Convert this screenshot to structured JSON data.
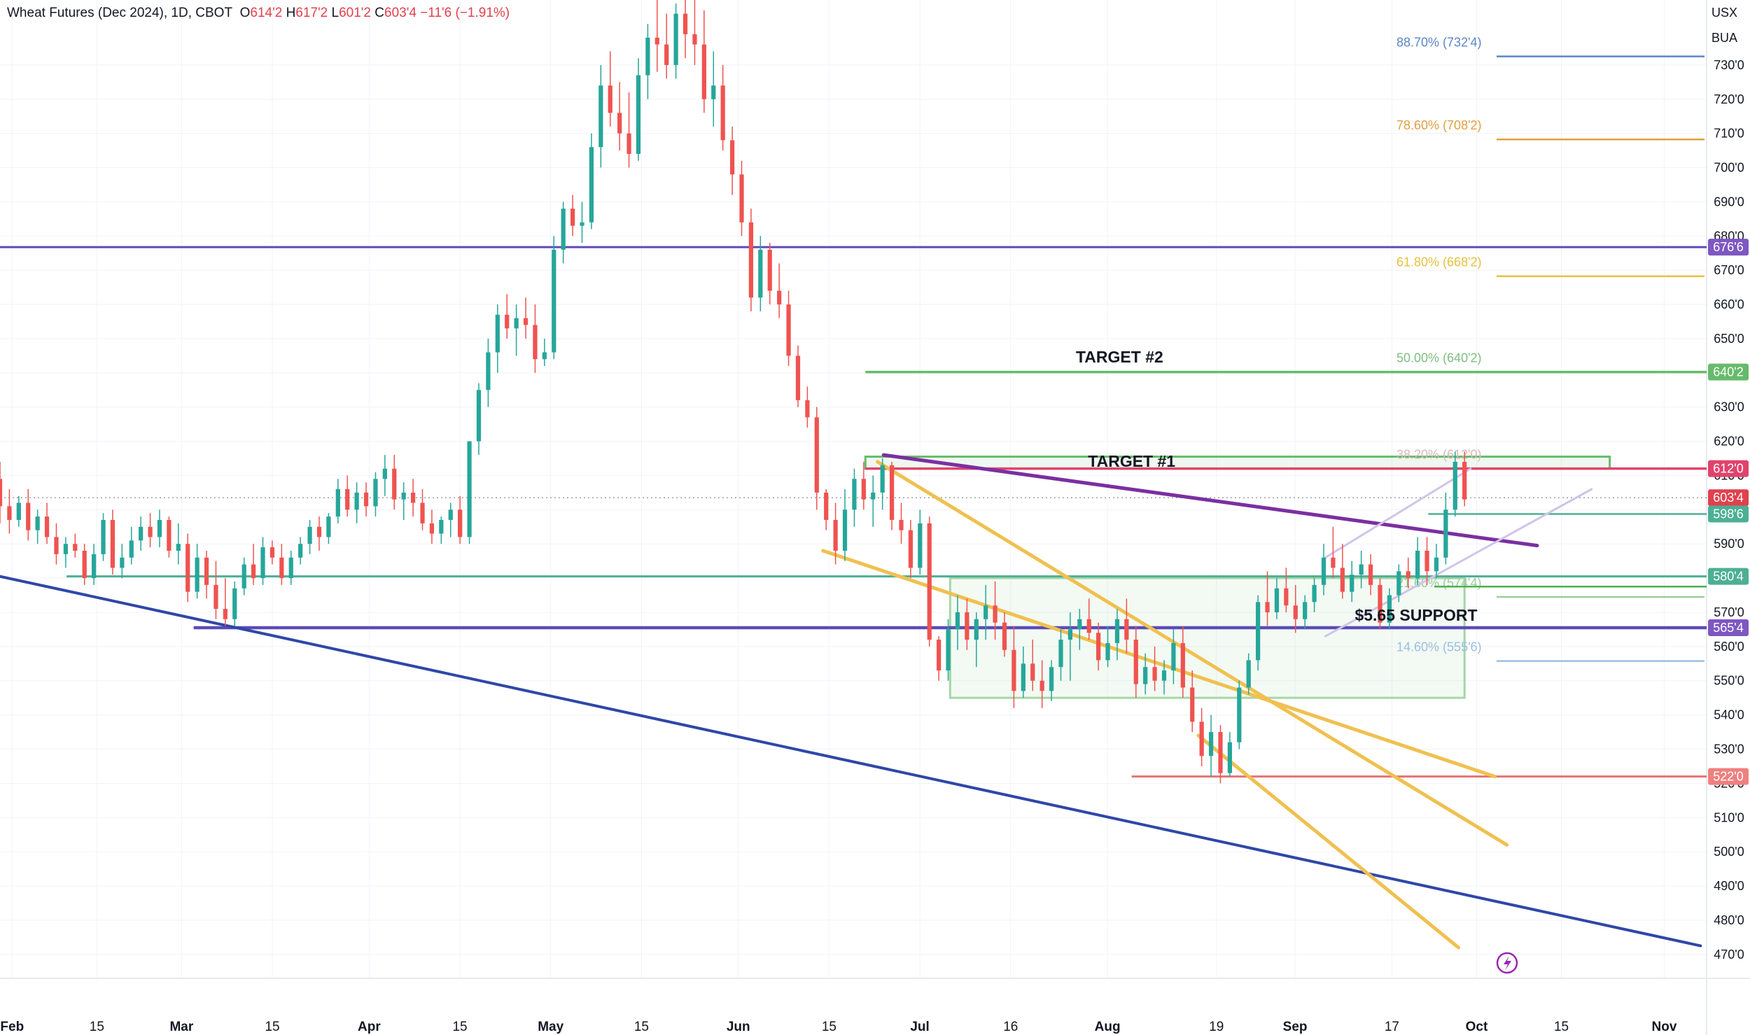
{
  "header": {
    "symbol": "Wheat Futures (Dec 2024), 1D, CBOT",
    "o_key": "O",
    "o_val": "614'2",
    "h_key": "H",
    "h_val": "617'2",
    "l_key": "L",
    "l_val": "601'2",
    "c_key": "C",
    "c_val": "603'4",
    "change": "−11'6 (−1.91%)"
  },
  "units": {
    "currency": "USX",
    "unit": "BUA"
  },
  "chart_data": {
    "type": "candlestick",
    "x_ticks": [
      "Feb",
      "15",
      "Mar",
      "15",
      "Apr",
      "15",
      "May",
      "15",
      "Jun",
      "15",
      "Jul",
      "16",
      "Aug",
      "19",
      "Sep",
      "17",
      "Oct",
      "15",
      "Nov"
    ],
    "x_tick_days": [
      0,
      14,
      28,
      43,
      59,
      74,
      89,
      104,
      120,
      135,
      150,
      165,
      181,
      199,
      212,
      228,
      242,
      256,
      273
    ],
    "x_range_days": [
      -2,
      280
    ],
    "y_ticks": [
      "470'0",
      "480'0",
      "490'0",
      "500'0",
      "510'0",
      "520'0",
      "530'0",
      "540'0",
      "550'0",
      "560'0",
      "570'0",
      "580'0",
      "590'0",
      "600'0",
      "610'0",
      "620'0",
      "630'0",
      "640'0",
      "650'0",
      "660'0",
      "670'0",
      "680'0",
      "690'0",
      "700'0",
      "710'0",
      "720'0",
      "730'0"
    ],
    "y_range": [
      463,
      749
    ],
    "price_labels": [
      {
        "text": "676'6",
        "value": 676.75,
        "color": "#7e57c2"
      },
      {
        "text": "640'2",
        "value": 640.25,
        "color": "#66bb6a"
      },
      {
        "text": "612'0",
        "value": 612,
        "color": "#e0436c"
      },
      {
        "text": "603'4",
        "value": 603.5,
        "color": "#e0414d"
      },
      {
        "text": "598'6",
        "value": 598.75,
        "color": "#4caf94"
      },
      {
        "text": "580'4",
        "value": 580.5,
        "color": "#4caf94"
      },
      {
        "text": "565'4",
        "value": 565.5,
        "color": "#7e57c2"
      },
      {
        "text": "522'0",
        "value": 522,
        "color": "#ef8080"
      }
    ],
    "fib_levels": [
      {
        "label": "88.70% (732'4)",
        "value": 732.5,
        "color": "#5b86c7"
      },
      {
        "label": "78.60% (708'2)",
        "value": 708.25,
        "color": "#e0a040"
      },
      {
        "label": "61.80% (668'2)",
        "value": 668.25,
        "color": "#e8c040"
      },
      {
        "label": "50.00% (640'2)",
        "value": 640.25,
        "color": "#7fbf7f"
      },
      {
        "label": "38.20% (612'0)",
        "value": 612,
        "color": "#d8b8b8"
      },
      {
        "label": "21.60% (574'4)",
        "value": 574.5,
        "color": "#9ccc9c"
      },
      {
        "label": "14.60% (555'6)",
        "value": 555.75,
        "color": "#9cbfe0"
      }
    ],
    "annotations": [
      {
        "text": "TARGET #2",
        "day": 183,
        "value": 643
      },
      {
        "text": "TARGET #1",
        "day": 185,
        "value": 612.5
      },
      {
        "text": "$5.65 SUPPORT",
        "day": 232,
        "value": 567.5
      }
    ],
    "colors": {
      "up": "#26a69a",
      "down": "#ef5350",
      "grid": "#f0f3fa",
      "axis_text": "#131722"
    },
    "candles_ohlc": [
      [
        609,
        614,
        596,
        601
      ],
      [
        601,
        606,
        593,
        597
      ],
      [
        597,
        604,
        595,
        602
      ],
      [
        602,
        606,
        591,
        594
      ],
      [
        594,
        600,
        590,
        598
      ],
      [
        598,
        602,
        590,
        592
      ],
      [
        592,
        596,
        584,
        587
      ],
      [
        587,
        592,
        583,
        590
      ],
      [
        590,
        593,
        586,
        588
      ],
      [
        588,
        590,
        578,
        580
      ],
      [
        580,
        590,
        578,
        587
      ],
      [
        587,
        599,
        585,
        597
      ],
      [
        597,
        600,
        581,
        583
      ],
      [
        583,
        590,
        580,
        586
      ],
      [
        586,
        595,
        584,
        591
      ],
      [
        591,
        598,
        588,
        595
      ],
      [
        595,
        599,
        589,
        592
      ],
      [
        592,
        600,
        589,
        597
      ],
      [
        597,
        598,
        586,
        588
      ],
      [
        588,
        596,
        584,
        590
      ],
      [
        590,
        593,
        573,
        576
      ],
      [
        576,
        590,
        574,
        586
      ],
      [
        586,
        588,
        574,
        578
      ],
      [
        578,
        585,
        568,
        571
      ],
      [
        571,
        580,
        566,
        568
      ],
      [
        568,
        579,
        566,
        577
      ],
      [
        577,
        586,
        575,
        584
      ],
      [
        584,
        590,
        578,
        580
      ],
      [
        580,
        592,
        578,
        589
      ],
      [
        589,
        591,
        584,
        586
      ],
      [
        586,
        590,
        578,
        580
      ],
      [
        580,
        588,
        578,
        586
      ],
      [
        586,
        592,
        584,
        590
      ],
      [
        590,
        597,
        587,
        595
      ],
      [
        595,
        598,
        588,
        592
      ],
      [
        592,
        599,
        590,
        598
      ],
      [
        598,
        609,
        596,
        606
      ],
      [
        606,
        610,
        598,
        600
      ],
      [
        600,
        608,
        596,
        605
      ],
      [
        605,
        608,
        598,
        601
      ],
      [
        601,
        611,
        598,
        609
      ],
      [
        609,
        616,
        604,
        612
      ],
      [
        612,
        616,
        600,
        603
      ],
      [
        603,
        608,
        597,
        605
      ],
      [
        605,
        609,
        598,
        602
      ],
      [
        602,
        606,
        594,
        596
      ],
      [
        596,
        600,
        590,
        593
      ],
      [
        593,
        598,
        590,
        597
      ],
      [
        597,
        602,
        592,
        600
      ],
      [
        600,
        604,
        590,
        592
      ],
      [
        592,
        620,
        590,
        620
      ],
      [
        620,
        637,
        616,
        635
      ],
      [
        635,
        650,
        630,
        646
      ],
      [
        646,
        660,
        640,
        657
      ],
      [
        657,
        663,
        650,
        653
      ],
      [
        653,
        660,
        645,
        656
      ],
      [
        656,
        662,
        650,
        654
      ],
      [
        654,
        660,
        640,
        644
      ],
      [
        644,
        650,
        642,
        646
      ],
      [
        646,
        680,
        644,
        676
      ],
      [
        676,
        690,
        672,
        688
      ],
      [
        688,
        692,
        680,
        683
      ],
      [
        683,
        690,
        678,
        684
      ],
      [
        684,
        710,
        682,
        706
      ],
      [
        706,
        730,
        700,
        724
      ],
      [
        724,
        734,
        712,
        716
      ],
      [
        716,
        725,
        705,
        710
      ],
      [
        710,
        722,
        700,
        704
      ],
      [
        704,
        732,
        702,
        727
      ],
      [
        727,
        742,
        720,
        738
      ],
      [
        738,
        752,
        728,
        736
      ],
      [
        736,
        745,
        726,
        730
      ],
      [
        730,
        748,
        726,
        745
      ],
      [
        745,
        755,
        732,
        739
      ],
      [
        739,
        750,
        730,
        736
      ],
      [
        736,
        746,
        716,
        720
      ],
      [
        720,
        734,
        712,
        724
      ],
      [
        724,
        730,
        705,
        708
      ],
      [
        708,
        712,
        692,
        698
      ],
      [
        698,
        702,
        680,
        684
      ],
      [
        684,
        688,
        658,
        662
      ],
      [
        662,
        680,
        658,
        676
      ],
      [
        676,
        678,
        660,
        664
      ],
      [
        664,
        672,
        656,
        660
      ],
      [
        660,
        664,
        642,
        645
      ],
      [
        645,
        648,
        630,
        632
      ],
      [
        632,
        636,
        624,
        627
      ],
      [
        627,
        630,
        600,
        605
      ],
      [
        605,
        606,
        594,
        597
      ],
      [
        597,
        602,
        584,
        588
      ],
      [
        588,
        606,
        585,
        600
      ],
      [
        600,
        612,
        595,
        609
      ],
      [
        609,
        614,
        600,
        603
      ],
      [
        603,
        610,
        595,
        605
      ],
      [
        605,
        615,
        600,
        613
      ],
      [
        613,
        614,
        594,
        597
      ],
      [
        597,
        602,
        590,
        594
      ],
      [
        594,
        597,
        580,
        583
      ],
      [
        583,
        600,
        581,
        596
      ],
      [
        596,
        598,
        560,
        562
      ],
      [
        562,
        563,
        550,
        553
      ],
      [
        553,
        568,
        550,
        565
      ],
      [
        565,
        575,
        559,
        570
      ],
      [
        570,
        574,
        559,
        562
      ],
      [
        562,
        570,
        554,
        568
      ],
      [
        568,
        578,
        562,
        572
      ],
      [
        572,
        579,
        562,
        567
      ],
      [
        567,
        570,
        557,
        559
      ],
      [
        559,
        566,
        542,
        547
      ],
      [
        547,
        560,
        545,
        555
      ],
      [
        555,
        562,
        547,
        550
      ],
      [
        550,
        556,
        542,
        547
      ],
      [
        547,
        556,
        544,
        554
      ],
      [
        554,
        565,
        550,
        562
      ],
      [
        562,
        570,
        550,
        565
      ],
      [
        565,
        571,
        559,
        568
      ],
      [
        568,
        574,
        562,
        564
      ],
      [
        564,
        567,
        553,
        556
      ],
      [
        556,
        566,
        554,
        561
      ],
      [
        561,
        571,
        556,
        568
      ],
      [
        568,
        574,
        558,
        562
      ],
      [
        562,
        566,
        545,
        549
      ],
      [
        549,
        558,
        546,
        554
      ],
      [
        554,
        560,
        547,
        550
      ],
      [
        550,
        556,
        546,
        553
      ],
      [
        553,
        565,
        549,
        561
      ],
      [
        561,
        566,
        545,
        548
      ],
      [
        548,
        553,
        535,
        538
      ],
      [
        538,
        542,
        525,
        528
      ],
      [
        528,
        540,
        522,
        535
      ],
      [
        535,
        537,
        520,
        523
      ],
      [
        523,
        535,
        522,
        532
      ],
      [
        532,
        550,
        530,
        548
      ],
      [
        548,
        558,
        546,
        556
      ],
      [
        556,
        575,
        553,
        573
      ],
      [
        573,
        582,
        566,
        570
      ],
      [
        570,
        580,
        568,
        577
      ],
      [
        577,
        583,
        570,
        572
      ],
      [
        572,
        578,
        564,
        568
      ],
      [
        568,
        575,
        565,
        573
      ],
      [
        573,
        580,
        570,
        578
      ],
      [
        578,
        590,
        575,
        586
      ],
      [
        586,
        595,
        580,
        583
      ],
      [
        583,
        590,
        574,
        576
      ],
      [
        576,
        585,
        573,
        581
      ],
      [
        581,
        588,
        577,
        584
      ],
      [
        584,
        587,
        575,
        578
      ],
      [
        578,
        580,
        565,
        567
      ],
      [
        567,
        577,
        565,
        575
      ],
      [
        575,
        584,
        573,
        582
      ],
      [
        582,
        586,
        577,
        580
      ],
      [
        580,
        592,
        578,
        588
      ],
      [
        588,
        592,
        578,
        582
      ],
      [
        582,
        590,
        580,
        586
      ],
      [
        586,
        605,
        584,
        600
      ],
      [
        600,
        617,
        598,
        614
      ],
      [
        614,
        617,
        601,
        603
      ]
    ]
  }
}
